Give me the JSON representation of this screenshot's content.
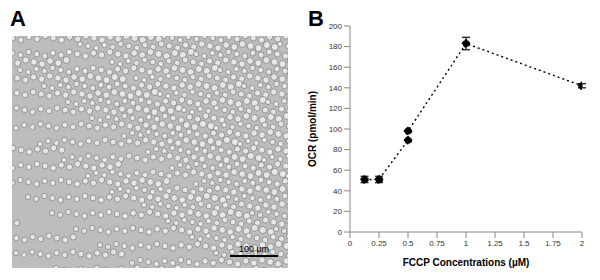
{
  "image_panel": {
    "label": "A",
    "scale_bar": "100 µm"
  },
  "chart_panel_label": "B",
  "chart_data": {
    "type": "line",
    "x": [
      0.125,
      0.25,
      0.5,
      0.5,
      1,
      2
    ],
    "values": [
      51,
      51,
      89,
      98,
      183,
      142
    ],
    "errors": [
      3,
      3,
      0,
      0,
      6,
      2
    ],
    "color": "#000000",
    "marker": "circle",
    "line_style": "dotted",
    "xlabel": "FCCP Concentrations (µM)",
    "ylabel": "OCR (pmol/min)",
    "xlim": [
      0,
      2
    ],
    "xticks": [
      0,
      0.25,
      0.5,
      0.75,
      1,
      1.25,
      1.5,
      1.75,
      2
    ],
    "ylim": [
      0,
      200
    ],
    "yticks": [
      0,
      20,
      40,
      60,
      80,
      100,
      120,
      140,
      160,
      180,
      200
    ],
    "grid": false
  }
}
